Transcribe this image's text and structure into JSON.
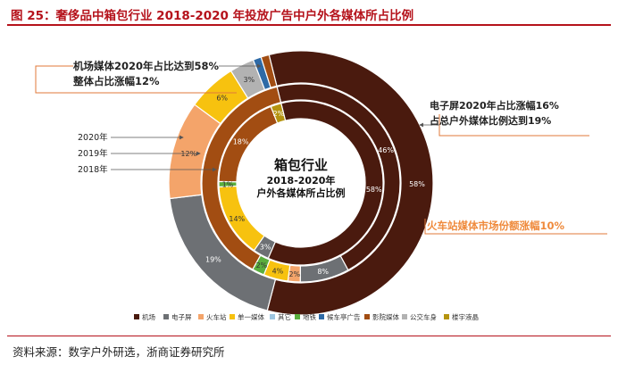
{
  "title": "图 25：奢侈品中箱包行业 2018-2020 年投放广告中户外各媒体所占比例",
  "source": "资料来源：数字户外研选，浙商证券研究所",
  "colors": {
    "title": "#b5121b",
    "机场": "#4a1a0e",
    "电子屏": "#6d7074",
    "火车站": "#f4a46a",
    "单一媒体": "#f7c20f",
    "其它": "#9ec6e0",
    "地铁": "#5aae3d",
    "候车亭广告": "#2e6aa6",
    "影院媒体": "#a24d12",
    "公交车身": "#b2b2b2",
    "楼宇液晶": "#b5940f"
  },
  "chart_data": {
    "type": "donut",
    "center_title": "箱包行业",
    "center_subtitle_1": "2018-2020年",
    "center_subtitle_2": "户外各媒体所占比例",
    "legend": [
      "机场",
      "电子屏",
      "火车站",
      "单一媒体",
      "其它",
      "地铁",
      "候车亭广告",
      "影院媒体",
      "公交车身",
      "楼宇液晶"
    ],
    "legend_position": "bottom",
    "rings": [
      {
        "year": "2020年",
        "segments": [
          {
            "category": "机场",
            "value": 58,
            "label": "58%"
          },
          {
            "category": "电子屏",
            "value": 19,
            "label": "19%"
          },
          {
            "category": "火车站",
            "value": 12,
            "label": "12%"
          },
          {
            "category": "单一媒体",
            "value": 6,
            "label": "6%"
          },
          {
            "category": "公交车身",
            "value": 3,
            "label": "3%"
          },
          {
            "category": "候车亭广告",
            "value": 1,
            "label": ""
          },
          {
            "category": "影院媒体",
            "value": 1,
            "label": ""
          }
        ]
      },
      {
        "year": "2019年",
        "segments": [
          {
            "category": "机场",
            "value": 46,
            "label": "46%"
          },
          {
            "category": "电子屏",
            "value": 8,
            "label": "8%"
          },
          {
            "category": "火车站",
            "value": 2,
            "label": "2%"
          },
          {
            "category": "单一媒体",
            "value": 4,
            "label": "4%"
          },
          {
            "category": "地铁",
            "value": 2,
            "label": "2%"
          },
          {
            "category": "影院媒体",
            "value": 38,
            "label": ""
          }
        ]
      },
      {
        "year": "2018年",
        "segments": [
          {
            "category": "机场",
            "value": 58,
            "label": "58%"
          },
          {
            "category": "电子屏",
            "value": 3,
            "label": "3%"
          },
          {
            "category": "单一媒体",
            "value": 14,
            "label": "14%"
          },
          {
            "category": "地铁",
            "value": 1,
            "label": "1%"
          },
          {
            "category": "影院媒体",
            "value": 18,
            "label": "18%"
          },
          {
            "category": "楼宇液晶",
            "value": 2,
            "label": "2%"
          }
        ]
      }
    ],
    "annotations": [
      {
        "key": "airport",
        "lines": [
          "机场媒体2020年占比达到58%",
          "整体占比涨幅12%"
        ],
        "color": "#222222"
      },
      {
        "key": "screen",
        "lines": [
          "电子屏2020年占比涨幅16%",
          "占总户外媒体比例达到19%"
        ],
        "color": "#222222"
      },
      {
        "key": "train",
        "lines": [
          "火车站媒体市场份额涨幅10%"
        ],
        "color": "#ef8a3c"
      }
    ]
  }
}
